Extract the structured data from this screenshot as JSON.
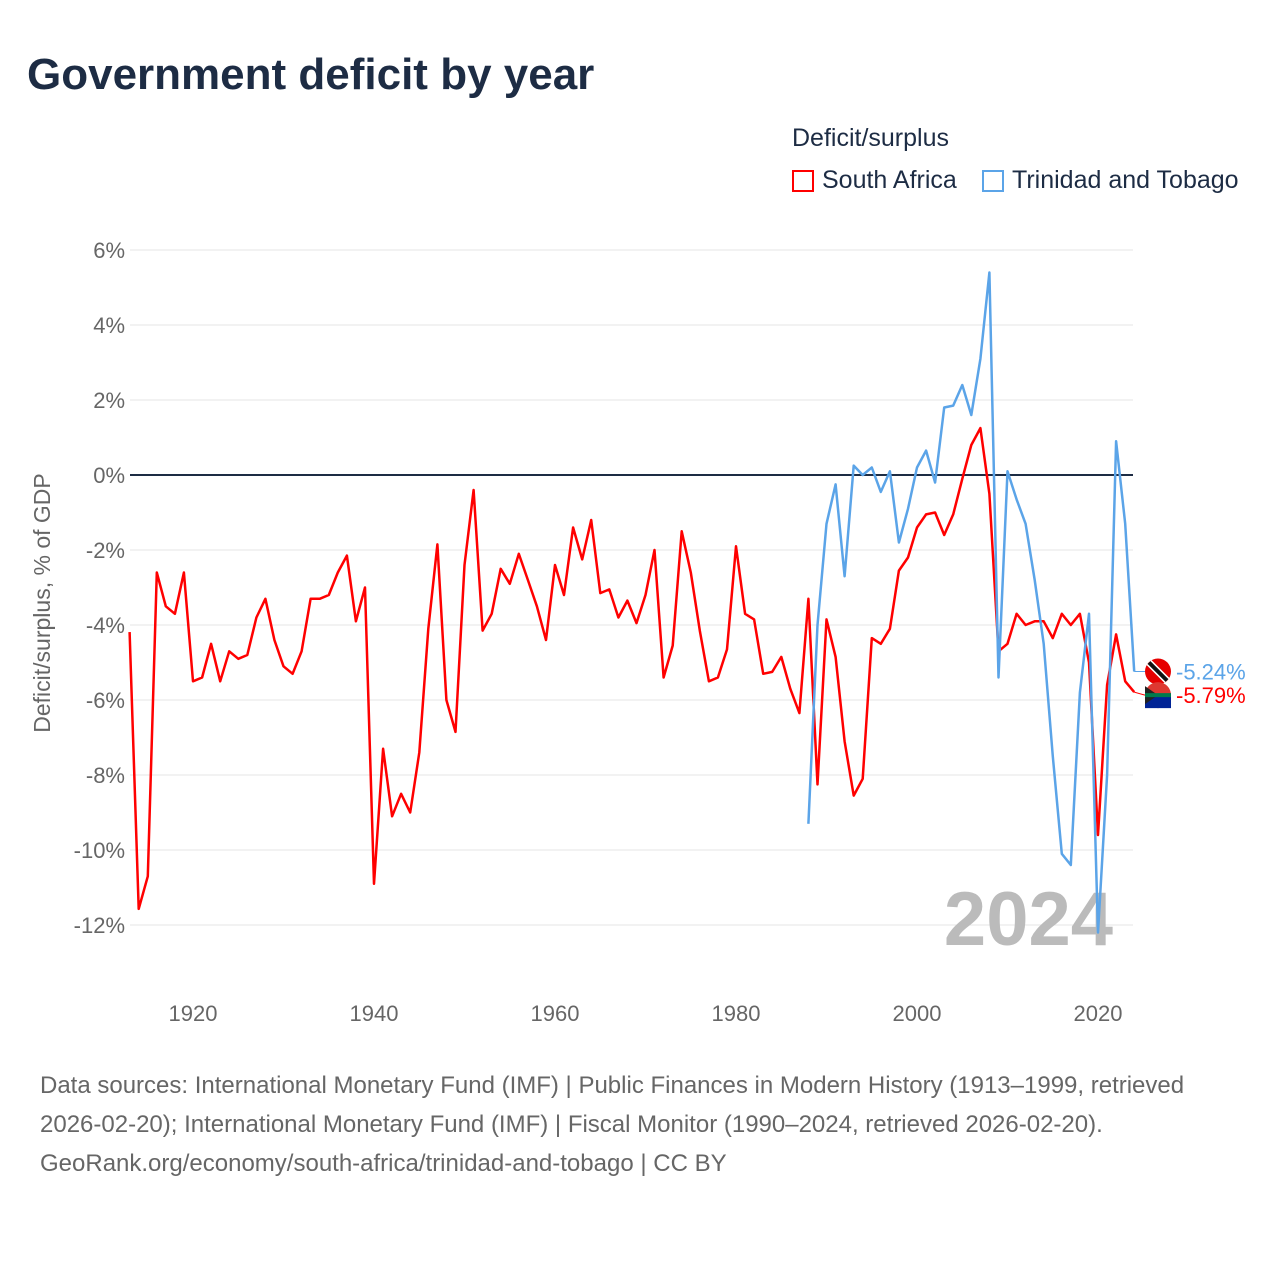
{
  "title": "Government deficit by year",
  "legend": {
    "title": "Deficit/surplus",
    "items": [
      "South Africa",
      "Trinidad and Tobago"
    ]
  },
  "year_watermark": "2024",
  "end_labels": [
    "-5.24%",
    "-5.79%"
  ],
  "footer": {
    "sources": "Data sources: International Monetary Fund (IMF) | Public Finances in Modern History (1913–1999, retrieved 2026-02-20); International Monetary Fund (IMF) | Fiscal Monitor (1990–2024, retrieved 2026-02-20).",
    "credit": "GeoRank.org/economy/south-africa/trinidad-and-tobago | CC BY"
  },
  "colors": {
    "south_africa": "#ff0000",
    "trinidad": "#5ba4e8",
    "zero": "#1d2c44"
  },
  "chart_data": {
    "type": "line",
    "title": "Government deficit by year",
    "xlabel": "",
    "ylabel": "Deficit/surplus, % of GDP",
    "xlim": [
      1913,
      2024
    ],
    "ylim": [
      -12,
      6
    ],
    "xticks": [
      "1920",
      "1940",
      "1960",
      "1980",
      "2000",
      "2020"
    ],
    "yticks": [
      "6%",
      "4%",
      "2%",
      "0%",
      "-2%",
      "-4%",
      "-6%",
      "-8%",
      "-10%",
      "-12%"
    ],
    "grid": true,
    "legend_position": "top-right",
    "series": [
      {
        "name": "South Africa",
        "start_year": 1913,
        "values": [
          -4.19,
          -11.57,
          -10.7,
          -2.6,
          -3.5,
          -3.7,
          -2.6,
          -5.5,
          -5.4,
          -4.5,
          -5.5,
          -4.7,
          -4.9,
          -4.8,
          -3.8,
          -3.3,
          -4.4,
          -5.1,
          -5.3,
          -4.7,
          -3.3,
          -3.3,
          -3.2,
          -2.6,
          -2.15,
          -3.9,
          -3.0,
          -10.9,
          -7.3,
          -9.1,
          -8.5,
          -9.0,
          -7.4,
          -4.1,
          -1.85,
          -6.0,
          -6.85,
          -2.4,
          -0.4,
          -4.15,
          -3.7,
          -2.5,
          -2.9,
          -2.1,
          -2.8,
          -3.5,
          -4.4,
          -2.4,
          -3.2,
          -1.4,
          -2.25,
          -1.2,
          -3.15,
          -3.05,
          -3.8,
          -3.35,
          -3.95,
          -3.2,
          -2.0,
          -5.4,
          -4.55,
          -1.5,
          -2.6,
          -4.15,
          -5.5,
          -5.4,
          -4.65,
          -1.9,
          -3.7,
          -3.85,
          -5.3,
          -5.25,
          -4.85,
          -5.7,
          -6.35,
          -3.3,
          -8.25,
          -3.85,
          -4.85,
          -7.1,
          -8.55,
          -8.1,
          -4.35,
          -4.5,
          -4.1,
          -2.55,
          -2.2,
          -1.4,
          -1.05,
          -1.0,
          -1.6,
          -1.05,
          -0.1,
          0.8,
          1.25,
          -0.5,
          -4.7,
          -4.5,
          -3.7,
          -4.0,
          -3.9,
          -3.9,
          -4.35,
          -3.7,
          -4.0,
          -3.7,
          -5.0,
          -9.6,
          -5.6,
          -4.25,
          -5.5,
          -5.79
        ]
      },
      {
        "name": "Trinidad and Tobago",
        "start_year": 1988,
        "values": [
          -9.3,
          -4.0,
          -1.3,
          -0.25,
          -2.7,
          0.25,
          0.0,
          0.2,
          -0.45,
          0.1,
          -1.8,
          -0.9,
          0.2,
          0.65,
          -0.2,
          1.8,
          1.85,
          2.4,
          1.6,
          3.1,
          5.4,
          -5.4,
          0.1,
          -0.65,
          -1.3,
          -2.8,
          -4.5,
          -7.5,
          -10.1,
          -10.4,
          -5.8,
          -3.7,
          -12.2,
          -8.0,
          0.9,
          -1.3,
          -5.24
        ]
      }
    ]
  }
}
